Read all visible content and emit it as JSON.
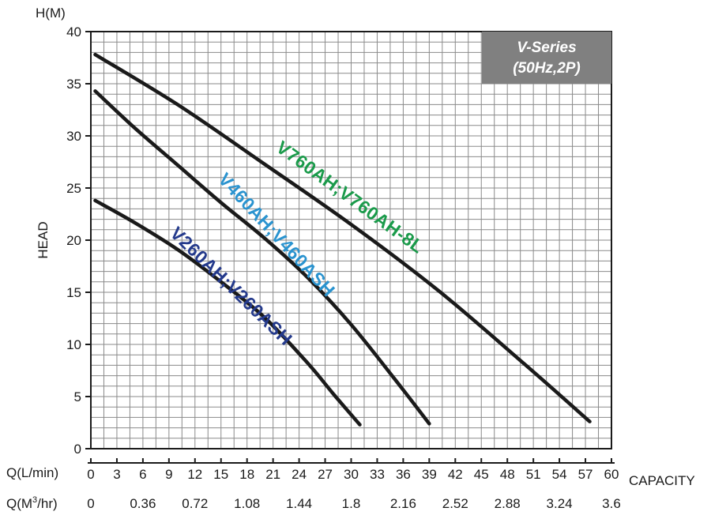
{
  "chart_data": {
    "type": "line",
    "title_badge": {
      "line1": "V-Series",
      "line2": "(50Hz,2P)",
      "bg_color": "#808080"
    },
    "y_axis": {
      "unit_label": "H(M)",
      "title": "HEAD",
      "range": [
        0,
        40
      ],
      "ticks": [
        0,
        5,
        10,
        15,
        20,
        25,
        30,
        35,
        40
      ]
    },
    "x_axis": {
      "title": "CAPACITY",
      "primary_label": "Q(L/min)",
      "primary_range": [
        0,
        60
      ],
      "primary_ticks": [
        0,
        3,
        6,
        9,
        12,
        15,
        18,
        21,
        24,
        27,
        30,
        33,
        36,
        39,
        42,
        45,
        48,
        51,
        54,
        57,
        60
      ],
      "secondary_label_prefix": "Q(M",
      "secondary_label_sup": "3",
      "secondary_label_suffix": "/hr)",
      "secondary_ticks": [
        "0",
        "0.36",
        "0.72",
        "1.08",
        "1.44",
        "1.8",
        "2.16",
        "2.52",
        "2.88",
        "3.24",
        "3.6"
      ]
    },
    "grid": true,
    "series": [
      {
        "name": "V760AH;V760AH-8L",
        "label_color": "#1a9a4a",
        "x": [
          0.5,
          10,
          20,
          30,
          40,
          50,
          57.5
        ],
        "y": [
          37.8,
          33.0,
          27.3,
          21.5,
          15.2,
          8.1,
          2.6
        ]
      },
      {
        "name": "V460AH;V460ASH",
        "label_color": "#2a93cf",
        "x": [
          0.5,
          5,
          10,
          15,
          20,
          25,
          30,
          35,
          39
        ],
        "y": [
          34.3,
          30.8,
          27.2,
          23.6,
          20.2,
          16.4,
          11.9,
          6.7,
          2.4
        ]
      },
      {
        "name": "V260AH;V260ASH",
        "label_color": "#243a8c",
        "x": [
          0.5,
          5,
          10,
          15,
          20,
          25,
          28,
          31
        ],
        "y": [
          23.8,
          21.7,
          19.1,
          16.0,
          12.6,
          8.2,
          5.2,
          2.3
        ]
      }
    ]
  }
}
